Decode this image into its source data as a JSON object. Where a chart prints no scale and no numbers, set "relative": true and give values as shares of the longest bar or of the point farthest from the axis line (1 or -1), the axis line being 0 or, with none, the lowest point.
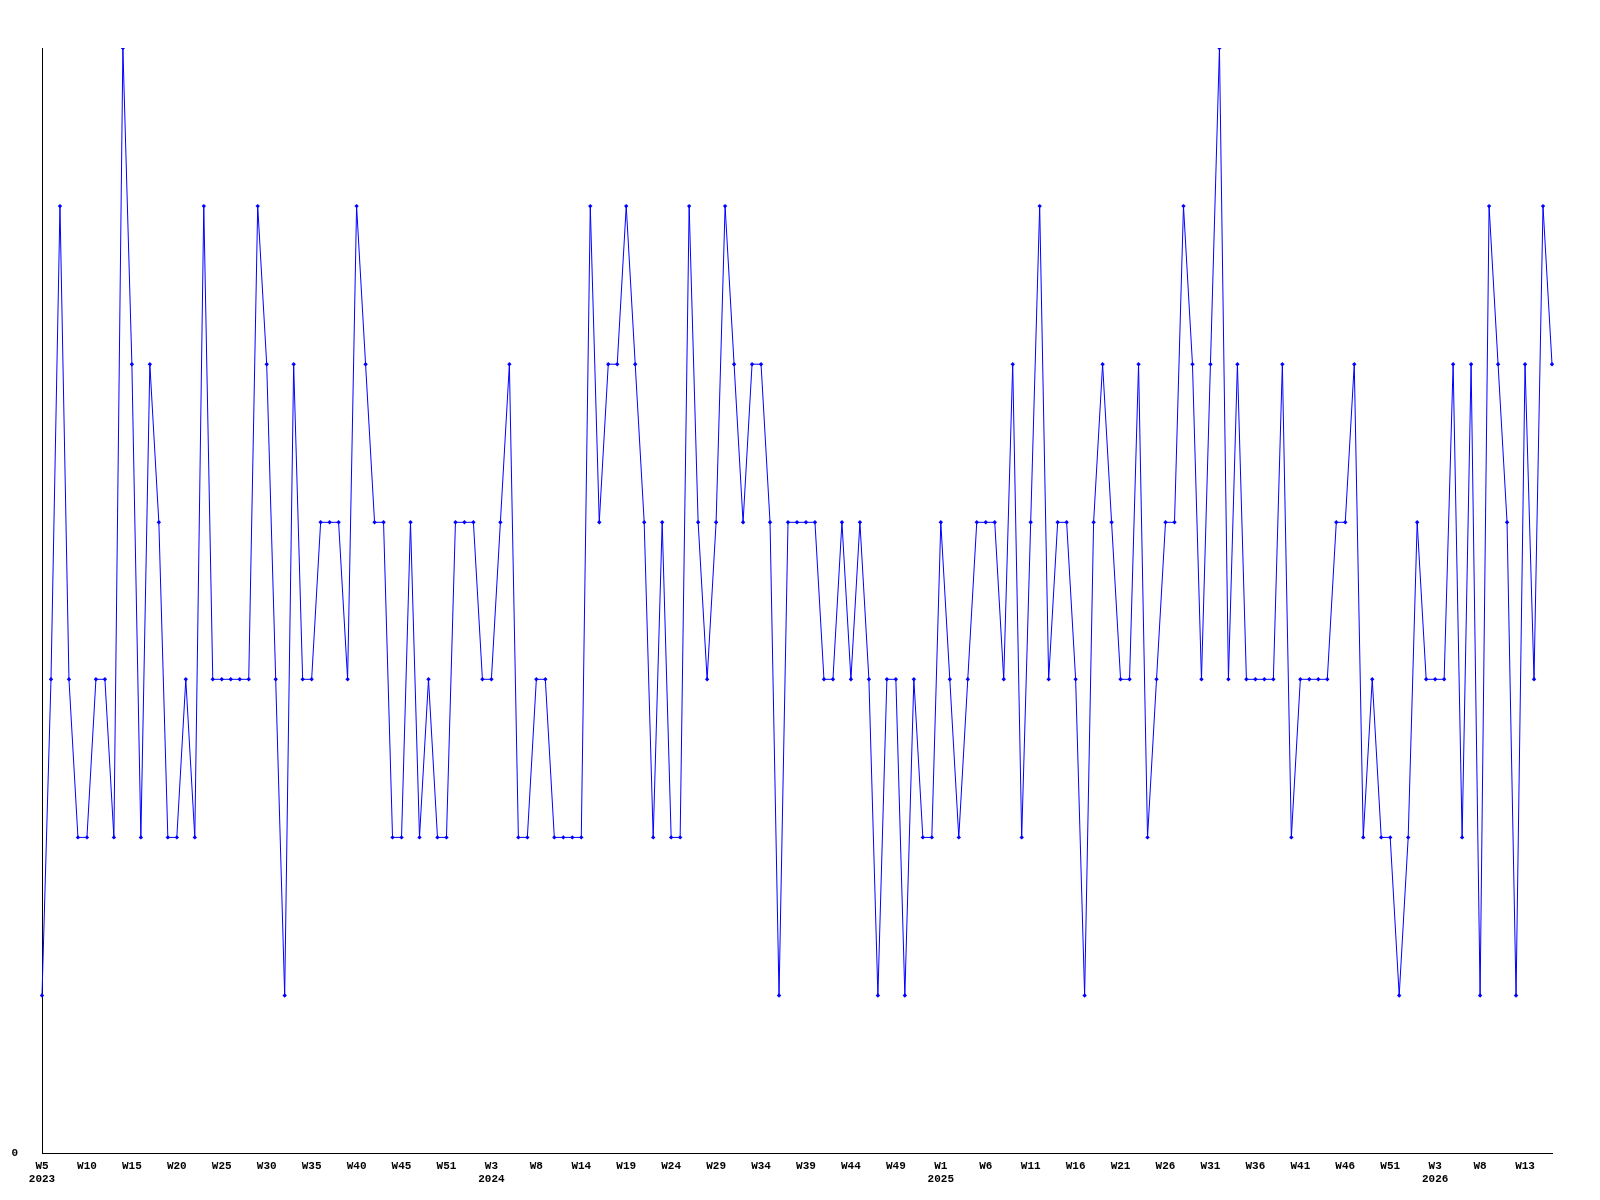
{
  "chart_data": {
    "type": "line",
    "relative": true,
    "marker": "diamond",
    "legend": false,
    "grid": false,
    "annotations": [
      "0"
    ],
    "categories": [
      "W5\n2023",
      null,
      null,
      null,
      null,
      "W10",
      null,
      null,
      null,
      null,
      "W15",
      null,
      null,
      null,
      null,
      "W20",
      null,
      null,
      null,
      null,
      "W25",
      null,
      null,
      null,
      null,
      "W30",
      null,
      null,
      null,
      null,
      "W35",
      null,
      null,
      null,
      null,
      "W40",
      null,
      null,
      null,
      null,
      "W45",
      null,
      null,
      null,
      null,
      "W51",
      null,
      null,
      null,
      null,
      "W3\n2024",
      null,
      null,
      null,
      null,
      "W8",
      null,
      null,
      null,
      null,
      "W14",
      null,
      null,
      null,
      null,
      "W19",
      null,
      null,
      null,
      null,
      "W24",
      null,
      null,
      null,
      null,
      "W29",
      null,
      null,
      null,
      null,
      "W34",
      null,
      null,
      null,
      null,
      "W39",
      null,
      null,
      null,
      null,
      "W44",
      null,
      null,
      null,
      null,
      "W49",
      null,
      null,
      null,
      null,
      "W1\n2025",
      null,
      null,
      null,
      null,
      "W6",
      null,
      null,
      null,
      null,
      "W11",
      null,
      null,
      null,
      null,
      "W16",
      null,
      null,
      null,
      null,
      "W21",
      null,
      null,
      null,
      null,
      "W26",
      null,
      null,
      null,
      null,
      "W31",
      null,
      null,
      null,
      null,
      "W36",
      null,
      null,
      null,
      null,
      "W41",
      null,
      null,
      null,
      null,
      "W46",
      null,
      null,
      null,
      null,
      "W51",
      null,
      null,
      null,
      null,
      "W3\n2026",
      null,
      null,
      null,
      null,
      "W8",
      null,
      null,
      null,
      null,
      "W13",
      null,
      null,
      null
    ],
    "series": [
      {
        "color": "#0000ff",
        "values": [
          0.143,
          0.429,
          0.857,
          0.429,
          0.286,
          0.286,
          0.429,
          0.429,
          0.286,
          1,
          0.714,
          0.286,
          0.714,
          0.571,
          0.286,
          0.286,
          0.429,
          0.286,
          0.857,
          0.429,
          0.429,
          0.429,
          0.429,
          0.429,
          0.857,
          0.714,
          0.429,
          0.143,
          0.714,
          0.429,
          0.429,
          0.571,
          0.571,
          0.571,
          0.429,
          0.857,
          0.714,
          0.571,
          0.571,
          0.286,
          0.286,
          0.571,
          0.286,
          0.429,
          0.286,
          0.286,
          0.571,
          0.571,
          0.571,
          0.429,
          0.429,
          0.571,
          0.714,
          0.286,
          0.286,
          0.429,
          0.429,
          0.286,
          0.286,
          0.286,
          0.286,
          0.857,
          0.571,
          0.714,
          0.714,
          0.857,
          0.714,
          0.571,
          0.286,
          0.571,
          0.286,
          0.286,
          0.857,
          0.571,
          0.429,
          0.571,
          0.857,
          0.714,
          0.571,
          0.714,
          0.714,
          0.571,
          0.143,
          0.571,
          0.571,
          0.571,
          0.571,
          0.429,
          0.429,
          0.571,
          0.429,
          0.571,
          0.429,
          0.143,
          0.429,
          0.429,
          0.143,
          0.429,
          0.286,
          0.286,
          0.571,
          0.429,
          0.286,
          0.429,
          0.571,
          0.571,
          0.571,
          0.429,
          0.714,
          0.286,
          0.571,
          0.857,
          0.429,
          0.571,
          0.571,
          0.429,
          0.143,
          0.571,
          0.714,
          0.571,
          0.429,
          0.429,
          0.714,
          0.286,
          0.429,
          0.571,
          0.571,
          0.857,
          0.714,
          0.429,
          0.714,
          1,
          0.429,
          0.714,
          0.429,
          0.429,
          0.429,
          0.429,
          0.714,
          0.286,
          0.429,
          0.429,
          0.429,
          0.429,
          0.571,
          0.571,
          0.714,
          0.286,
          0.429,
          0.286,
          0.286,
          0.143,
          0.286,
          0.571,
          0.429,
          0.429,
          0.429,
          0.714,
          0.286,
          0.714,
          0.143,
          0.857,
          0.714,
          0.571,
          0.143,
          0.714,
          0.429,
          0.857,
          0.714
        ]
      }
    ]
  }
}
